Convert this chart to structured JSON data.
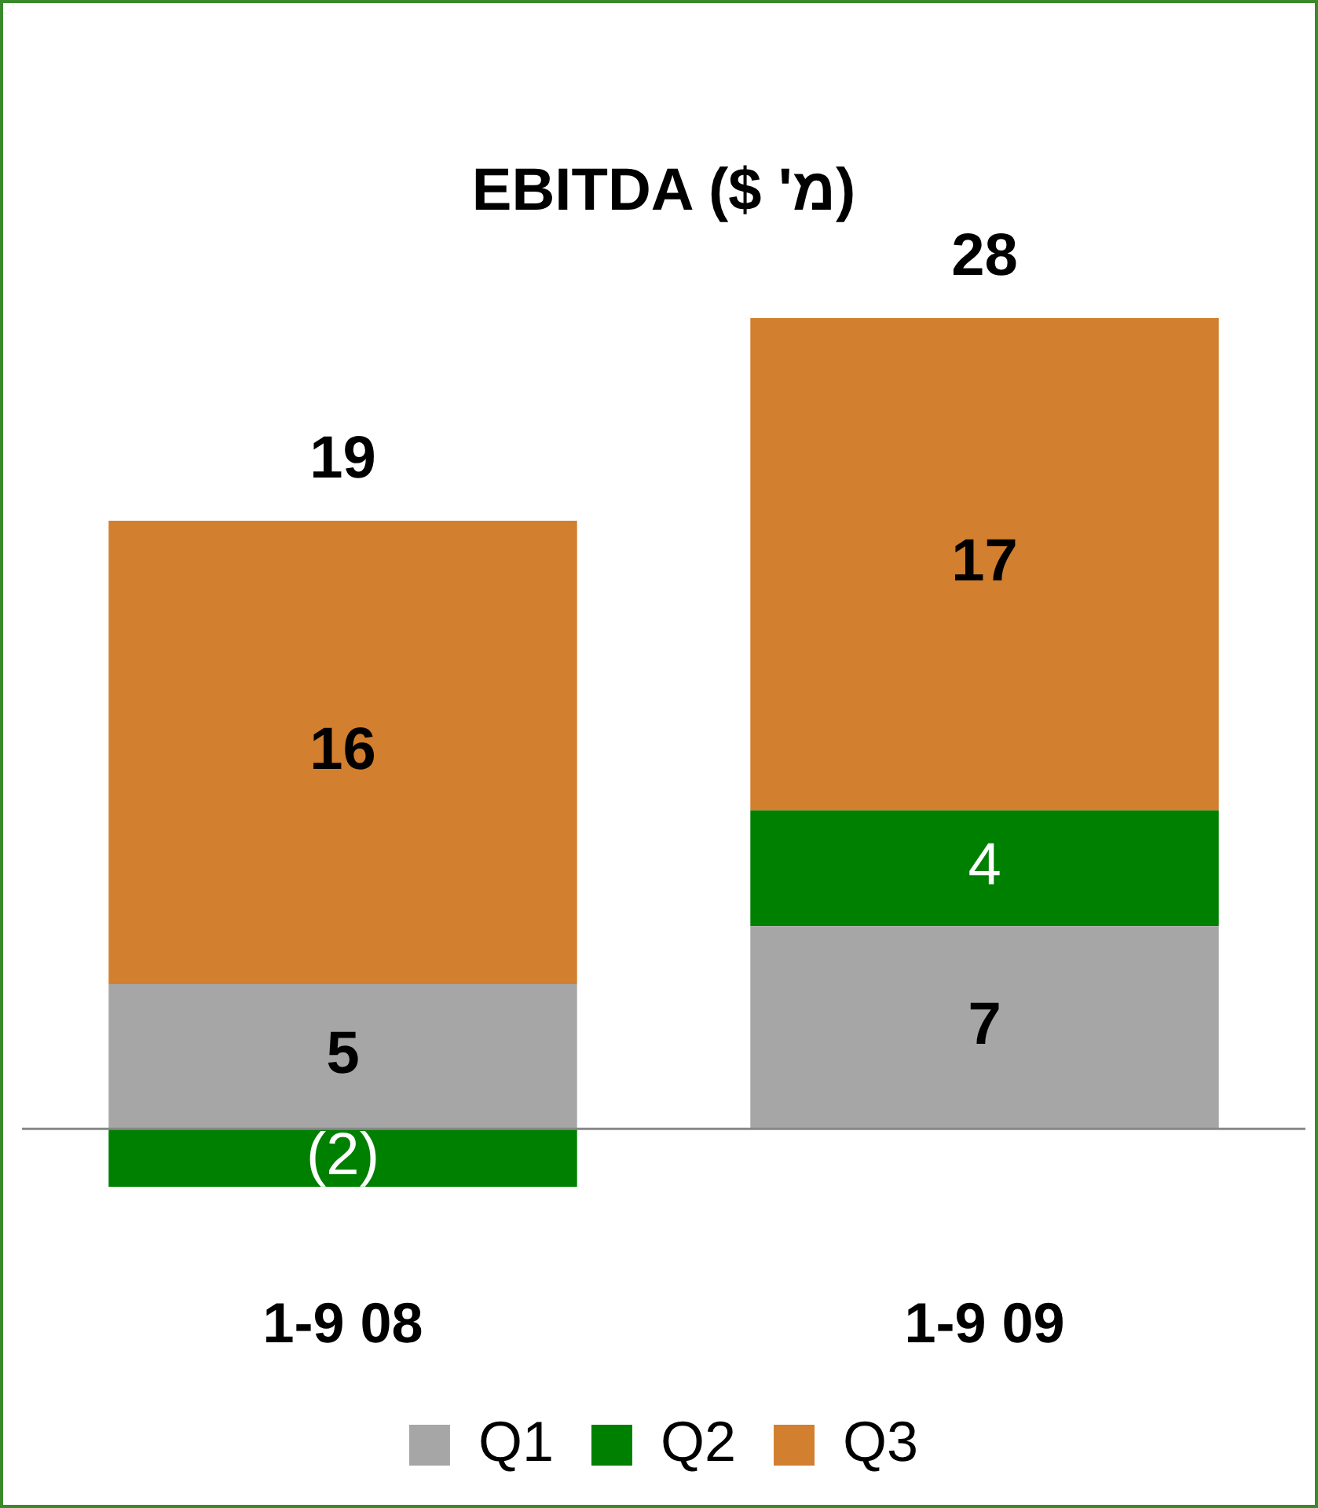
{
  "chart_data": {
    "type": "bar",
    "title": "EBITDA ($ 'מ)",
    "categories": [
      "1-9 08",
      "1-9 09"
    ],
    "stacked": true,
    "series": [
      {
        "name": "Q1",
        "color": "#a6a6a6",
        "values": [
          5,
          7
        ],
        "value_labels": [
          "5",
          "7"
        ]
      },
      {
        "name": "Q2",
        "color": "#008000",
        "values": [
          -2,
          4
        ],
        "value_labels": [
          "(2)",
          "4"
        ]
      },
      {
        "name": "Q3",
        "color": "#d27f2f",
        "values": [
          16,
          17
        ],
        "value_labels": [
          "16",
          "17"
        ]
      }
    ],
    "totals": [
      "19",
      "28"
    ],
    "legend": "bottom",
    "grid": false
  }
}
